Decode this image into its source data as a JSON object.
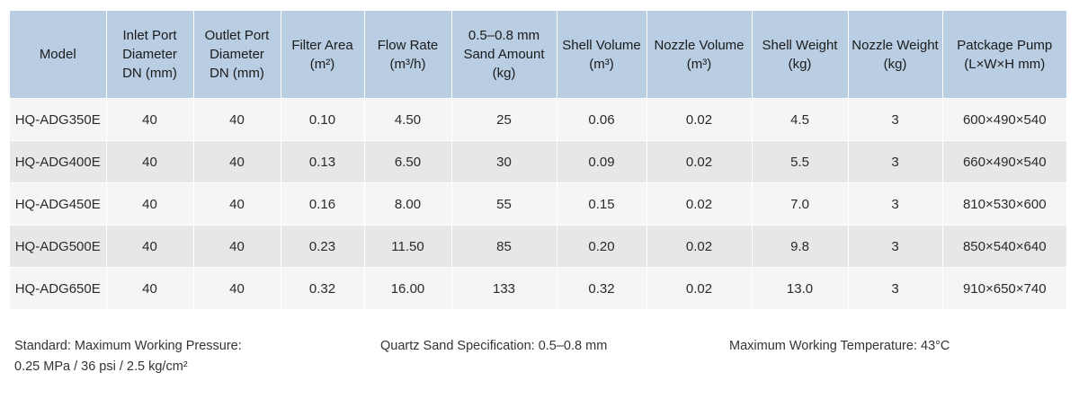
{
  "table": {
    "columns": [
      {
        "lines": [
          "Model"
        ]
      },
      {
        "lines": [
          "Inlet Port",
          "Diameter",
          "DN (mm)"
        ]
      },
      {
        "lines": [
          "Outlet Port",
          "Diameter",
          "DN (mm)"
        ]
      },
      {
        "lines": [
          "Filter Area",
          "(m²)"
        ]
      },
      {
        "lines": [
          "Flow Rate",
          "(m³/h)"
        ]
      },
      {
        "lines": [
          "0.5–0.8 mm",
          "Sand Amount",
          "(kg)"
        ]
      },
      {
        "lines": [
          "Shell Volume",
          "(m³)"
        ]
      },
      {
        "lines": [
          "Nozzle Volume",
          "(m³)"
        ]
      },
      {
        "lines": [
          "Shell Weight",
          "(kg)"
        ]
      },
      {
        "lines": [
          "Nozzle Weight",
          "(kg)"
        ]
      },
      {
        "lines": [
          "Patckage Pump",
          "(L×W×H mm)"
        ]
      }
    ],
    "rows": [
      [
        "HQ-ADG350E",
        "40",
        "40",
        "0.10",
        "4.50",
        "25",
        "0.06",
        "0.02",
        "4.5",
        "3",
        "600×490×540"
      ],
      [
        "HQ-ADG400E",
        "40",
        "40",
        "0.13",
        "6.50",
        "30",
        "0.09",
        "0.02",
        "5.5",
        "3",
        "660×490×540"
      ],
      [
        "HQ-ADG450E",
        "40",
        "40",
        "0.16",
        "8.00",
        "55",
        "0.15",
        "0.02",
        "7.0",
        "3",
        "810×530×600"
      ],
      [
        "HQ-ADG500E",
        "40",
        "40",
        "0.23",
        "11.50",
        "85",
        "0.20",
        "0.02",
        "9.8",
        "3",
        "850×540×640"
      ],
      [
        "HQ-ADG650E",
        "40",
        "40",
        "0.32",
        "16.00",
        "133",
        "0.32",
        "0.02",
        "13.0",
        "3",
        "910×650×740"
      ]
    ]
  },
  "notes": {
    "standard_line1": "Standard: Maximum Working Pressure:",
    "standard_line2": "0.25 MPa / 36 psi / 2.5 kg/cm²",
    "sand": "Quartz Sand Specification: 0.5–0.8 mm",
    "temperature": "Maximum Working Temperature: 43°C"
  },
  "colors": {
    "header_bg": "#b9cde3",
    "row_light": "#f5f5f5",
    "row_dark": "#e7e7e7"
  }
}
